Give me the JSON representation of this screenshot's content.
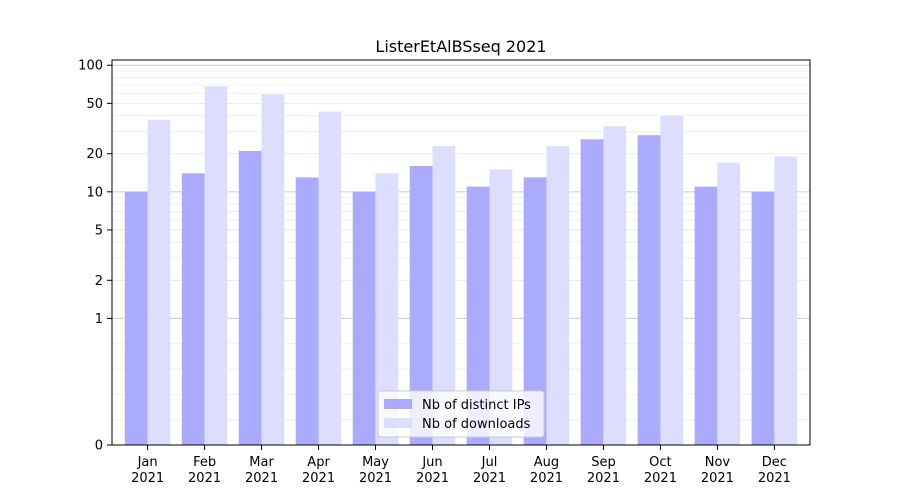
{
  "chart_data": {
    "type": "bar",
    "title": "ListerEtAlBSseq 2021",
    "xlabel": "",
    "ylabel": "",
    "categories": [
      "Jan\n2021",
      "Feb\n2021",
      "Mar\n2021",
      "Apr\n2021",
      "May\n2021",
      "Jun\n2021",
      "Jul\n2021",
      "Aug\n2021",
      "Sep\n2021",
      "Oct\n2021",
      "Nov\n2021",
      "Dec\n2021"
    ],
    "series": [
      {
        "name": "Nb of distinct IPs",
        "color": "#aaaaff",
        "values": [
          10,
          14,
          21,
          13,
          10,
          16,
          11,
          13,
          26,
          28,
          11,
          10
        ]
      },
      {
        "name": "Nb of downloads",
        "color": "#ddddff",
        "values": [
          37,
          68,
          59,
          43,
          14,
          23,
          15,
          23,
          33,
          40,
          17,
          19
        ]
      }
    ],
    "yscale": "symlog",
    "ylim": [
      0,
      110
    ],
    "yticks": [
      0,
      1,
      2,
      5,
      10,
      20,
      50,
      100
    ],
    "legend_position": "bottom-center",
    "grid": true
  }
}
